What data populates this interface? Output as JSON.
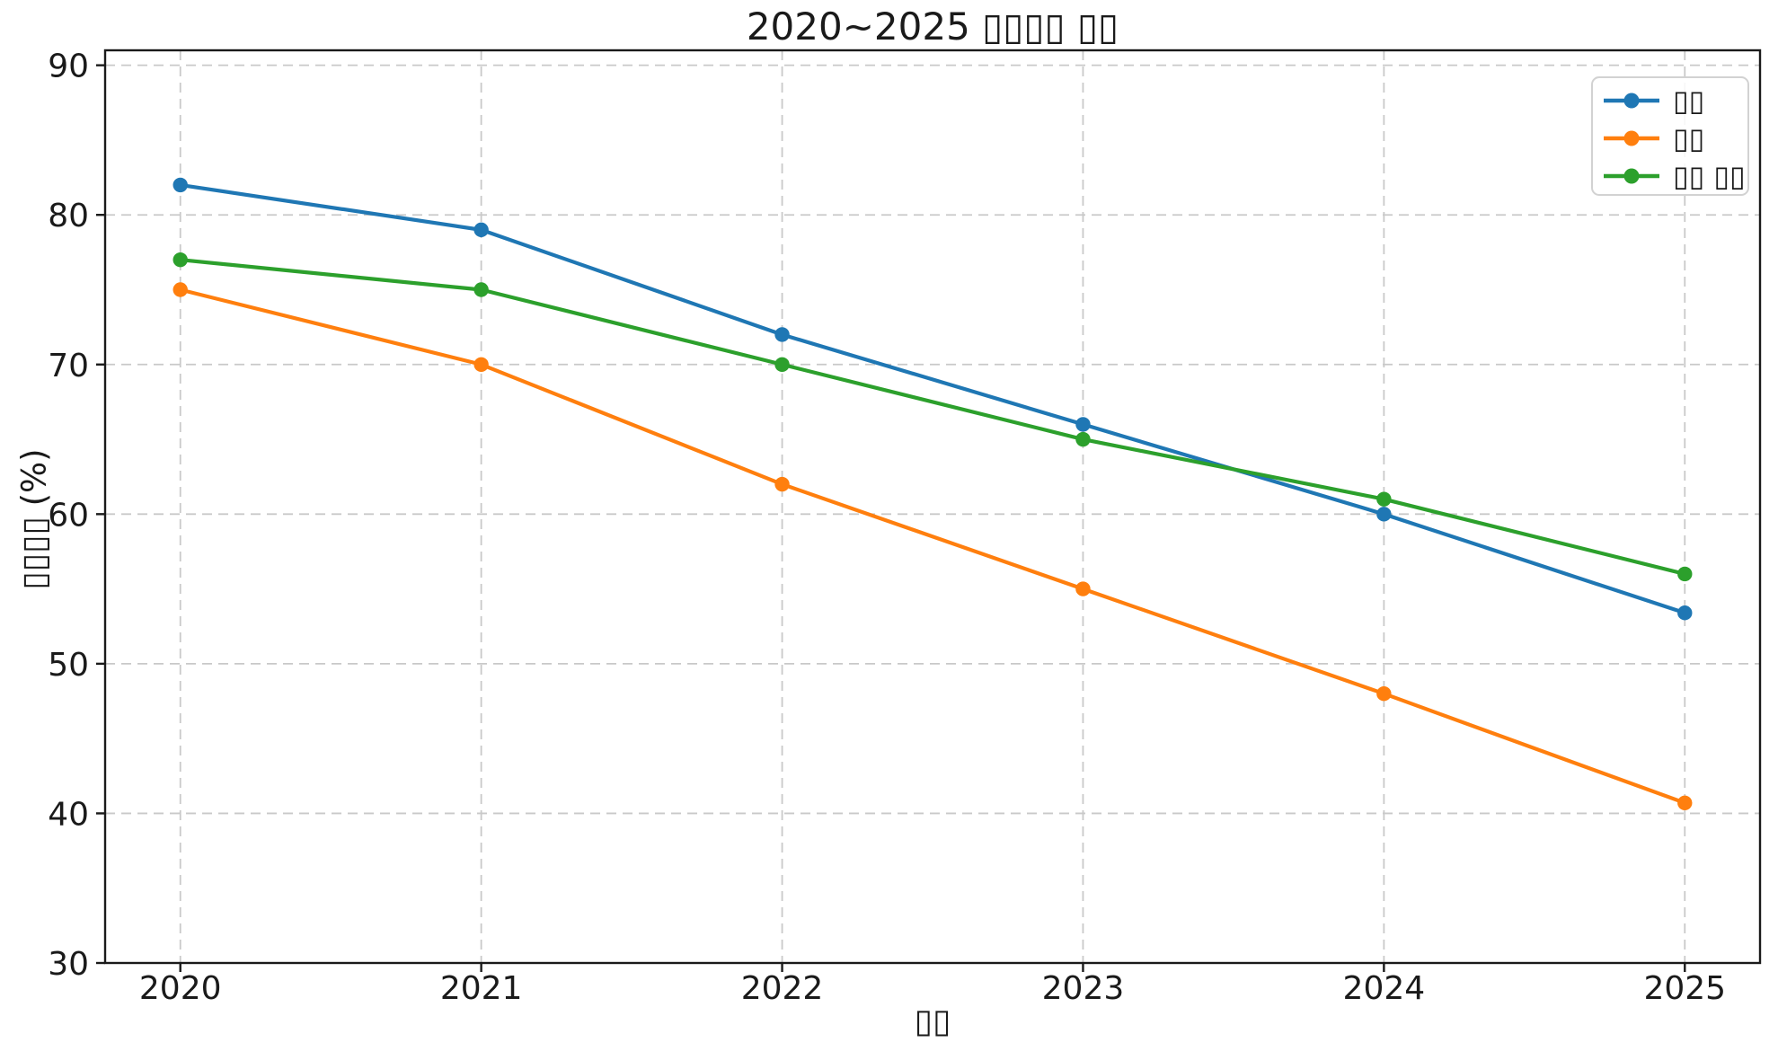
{
  "chart_data": {
    "type": "line",
    "title": "2020~2025 ▯▯▯▯ ▯▯",
    "xlabel": "▯▯",
    "ylabel": "▯▯▯▯ (%)",
    "x": [
      2020,
      2021,
      2022,
      2023,
      2024,
      2025
    ],
    "xticklabels": [
      "2020",
      "2021",
      "2022",
      "2023",
      "2024",
      "2025"
    ],
    "yticks": [
      30,
      40,
      50,
      60,
      70,
      80,
      90
    ],
    "ylim": [
      30,
      91
    ],
    "xlim": [
      2019.75,
      2025.25
    ],
    "grid": "dashed-both-axes",
    "legend_position": "upper-right",
    "series": [
      {
        "name": "▯▯",
        "color": "#1f77b4",
        "marker": "circle",
        "values": [
          82,
          79,
          72,
          66,
          60,
          53.4
        ]
      },
      {
        "name": "▯▯",
        "color": "#ff7f0e",
        "marker": "circle",
        "values": [
          75,
          70,
          62,
          55,
          48,
          40.7
        ]
      },
      {
        "name": "▯▯ ▯▯",
        "color": "#2ca02c",
        "marker": "circle",
        "values": [
          77,
          75,
          70,
          65,
          61,
          56
        ]
      }
    ]
  },
  "colors": {
    "background": "#ffffff",
    "grid": "#c9c9c9",
    "spine": "#1a1a1a",
    "text": "#1a1a1a",
    "legend_border": "#d2d2d2"
  }
}
